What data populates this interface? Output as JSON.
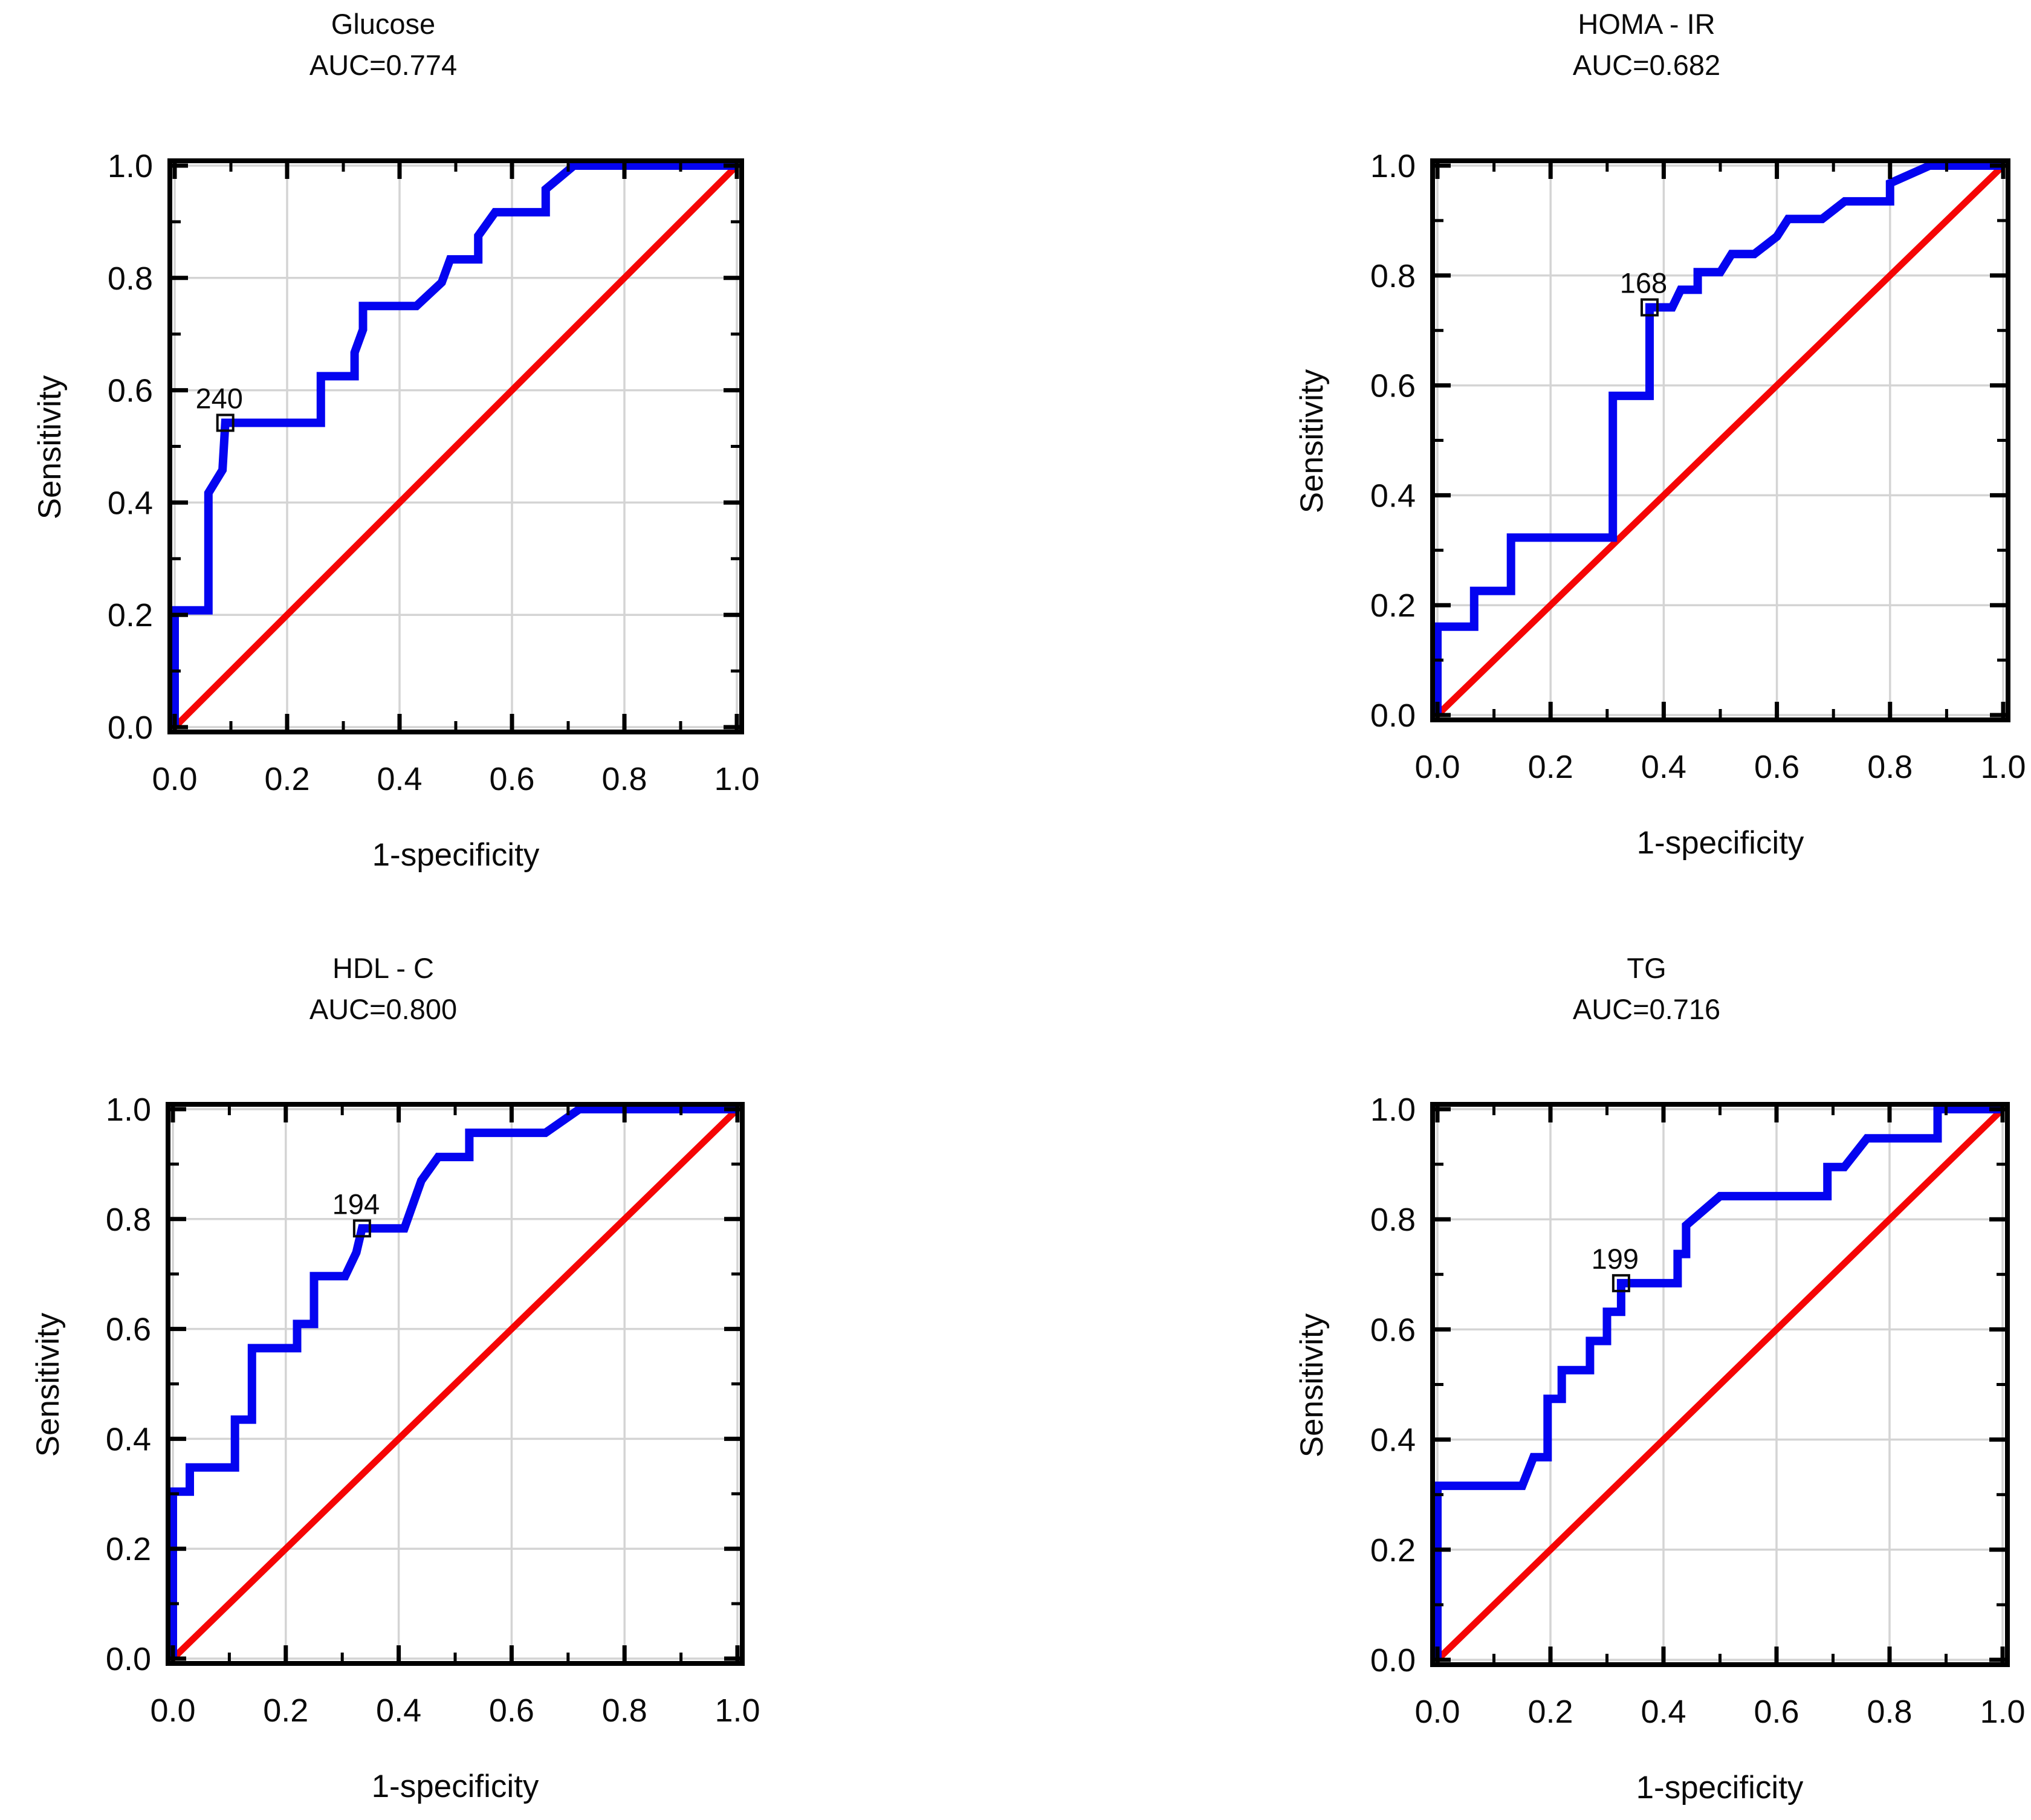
{
  "page": {
    "background": "#ffffff",
    "text_color": "#0a0a0a",
    "gridline_color": "#d4d4d4"
  },
  "chart_data": [
    {
      "type": "line",
      "title": "Glucose",
      "subtitle": "AUC=0.774",
      "auc": 0.774,
      "xlabel": "1-specificity",
      "ylabel": "Sensitivity",
      "xlim": [
        0,
        1
      ],
      "ylim": [
        0,
        1
      ],
      "grid": true,
      "legend_position": "none",
      "xticks": [
        "0.0",
        "0.2",
        "0.4",
        "0.6",
        "0.8",
        "1.0"
      ],
      "yticks": [
        "0.0",
        "0.2",
        "0.4",
        "0.6",
        "0.8",
        "1.0"
      ],
      "series": [
        {
          "name": "ROC curve",
          "color": "#0404f0",
          "points": [
            [
              0,
              0
            ],
            [
              0,
              0.208
            ],
            [
              0.06,
              0.208
            ],
            [
              0.06,
              0.417
            ],
            [
              0.085,
              0.458
            ],
            [
              0.09,
              0.542
            ],
            [
              0.26,
              0.542
            ],
            [
              0.26,
              0.625
            ],
            [
              0.32,
              0.625
            ],
            [
              0.32,
              0.667
            ],
            [
              0.335,
              0.708
            ],
            [
              0.335,
              0.75
            ],
            [
              0.43,
              0.75
            ],
            [
              0.475,
              0.792
            ],
            [
              0.49,
              0.833
            ],
            [
              0.54,
              0.833
            ],
            [
              0.54,
              0.875
            ],
            [
              0.57,
              0.917
            ],
            [
              0.66,
              0.917
            ],
            [
              0.66,
              0.958
            ],
            [
              0.71,
              1
            ],
            [
              1,
              1
            ]
          ]
        },
        {
          "name": "chance diagonal",
          "color": "#f50505",
          "points": [
            [
              0,
              0
            ],
            [
              1,
              1
            ]
          ]
        }
      ],
      "cutoff_marker": {
        "label": "240",
        "x": 0.09,
        "y": 0.542
      }
    },
    {
      "type": "line",
      "title": "HOMA - IR",
      "subtitle": "AUC=0.682",
      "auc": 0.682,
      "xlabel": "1-specificity",
      "ylabel": "Sensitivity",
      "xlim": [
        0,
        1
      ],
      "ylim": [
        0,
        1
      ],
      "grid": true,
      "legend_position": "none",
      "xticks": [
        "0.0",
        "0.2",
        "0.4",
        "0.6",
        "0.8",
        "1.0"
      ],
      "yticks": [
        "0.0",
        "0.2",
        "0.4",
        "0.6",
        "0.8",
        "1.0"
      ],
      "series": [
        {
          "name": "ROC curve",
          "color": "#0404f0",
          "points": [
            [
              0,
              0
            ],
            [
              0,
              0.161
            ],
            [
              0.065,
              0.161
            ],
            [
              0.065,
              0.226
            ],
            [
              0.13,
              0.226
            ],
            [
              0.13,
              0.323
            ],
            [
              0.31,
              0.323
            ],
            [
              0.31,
              0.581
            ],
            [
              0.375,
              0.581
            ],
            [
              0.375,
              0.742
            ],
            [
              0.415,
              0.742
            ],
            [
              0.43,
              0.774
            ],
            [
              0.46,
              0.774
            ],
            [
              0.46,
              0.806
            ],
            [
              0.5,
              0.806
            ],
            [
              0.52,
              0.839
            ],
            [
              0.56,
              0.839
            ],
            [
              0.6,
              0.871
            ],
            [
              0.62,
              0.903
            ],
            [
              0.68,
              0.903
            ],
            [
              0.72,
              0.935
            ],
            [
              0.8,
              0.935
            ],
            [
              0.8,
              0.968
            ],
            [
              0.87,
              1
            ],
            [
              1,
              1
            ]
          ]
        },
        {
          "name": "chance diagonal",
          "color": "#f50505",
          "points": [
            [
              0,
              0
            ],
            [
              1,
              1
            ]
          ]
        }
      ],
      "cutoff_marker": {
        "label": "168",
        "x": 0.375,
        "y": 0.742
      }
    },
    {
      "type": "line",
      "title": "HDL - C",
      "subtitle": "AUC=0.800",
      "auc": 0.8,
      "xlabel": "1-specificity",
      "ylabel": "Sensitivity",
      "xlim": [
        0,
        1
      ],
      "ylim": [
        0,
        1
      ],
      "grid": true,
      "legend_position": "none",
      "xticks": [
        "0.0",
        "0.2",
        "0.4",
        "0.6",
        "0.8",
        "1.0"
      ],
      "yticks": [
        "0.0",
        "0.2",
        "0.4",
        "0.6",
        "0.8",
        "1.0"
      ],
      "series": [
        {
          "name": "ROC curve",
          "color": "#0404f0",
          "points": [
            [
              0,
              0
            ],
            [
              0,
              0.304
            ],
            [
              0.03,
              0.304
            ],
            [
              0.03,
              0.348
            ],
            [
              0.11,
              0.348
            ],
            [
              0.11,
              0.435
            ],
            [
              0.14,
              0.435
            ],
            [
              0.14,
              0.565
            ],
            [
              0.22,
              0.565
            ],
            [
              0.22,
              0.609
            ],
            [
              0.25,
              0.609
            ],
            [
              0.25,
              0.696
            ],
            [
              0.305,
              0.696
            ],
            [
              0.325,
              0.739
            ],
            [
              0.335,
              0.783
            ],
            [
              0.41,
              0.783
            ],
            [
              0.44,
              0.87
            ],
            [
              0.47,
              0.913
            ],
            [
              0.525,
              0.913
            ],
            [
              0.525,
              0.957
            ],
            [
              0.66,
              0.957
            ],
            [
              0.72,
              1
            ],
            [
              1,
              1
            ]
          ]
        },
        {
          "name": "chance diagonal",
          "color": "#f50505",
          "points": [
            [
              0,
              0
            ],
            [
              1,
              1
            ]
          ]
        }
      ],
      "cutoff_marker": {
        "label": "194",
        "x": 0.335,
        "y": 0.783
      }
    },
    {
      "type": "line",
      "title": "TG",
      "subtitle": "AUC=0.716",
      "auc": 0.716,
      "xlabel": "1-specificity",
      "ylabel": "Sensitivity",
      "xlim": [
        0,
        1
      ],
      "ylim": [
        0,
        1
      ],
      "grid": true,
      "legend_position": "none",
      "xticks": [
        "0.0",
        "0.2",
        "0.4",
        "0.6",
        "0.8",
        "1.0"
      ],
      "yticks": [
        "0.0",
        "0.2",
        "0.4",
        "0.6",
        "0.8",
        "1.0"
      ],
      "series": [
        {
          "name": "ROC curve",
          "color": "#0404f0",
          "points": [
            [
              0,
              0
            ],
            [
              0,
              0.316
            ],
            [
              0.15,
              0.316
            ],
            [
              0.17,
              0.368
            ],
            [
              0.195,
              0.368
            ],
            [
              0.195,
              0.474
            ],
            [
              0.22,
              0.474
            ],
            [
              0.22,
              0.526
            ],
            [
              0.27,
              0.526
            ],
            [
              0.27,
              0.579
            ],
            [
              0.3,
              0.579
            ],
            [
              0.3,
              0.632
            ],
            [
              0.325,
              0.632
            ],
            [
              0.325,
              0.684
            ],
            [
              0.425,
              0.684
            ],
            [
              0.425,
              0.737
            ],
            [
              0.44,
              0.737
            ],
            [
              0.44,
              0.789
            ],
            [
              0.5,
              0.842
            ],
            [
              0.69,
              0.842
            ],
            [
              0.69,
              0.895
            ],
            [
              0.72,
              0.895
            ],
            [
              0.76,
              0.947
            ],
            [
              0.885,
              0.947
            ],
            [
              0.885,
              1
            ],
            [
              1,
              1
            ]
          ]
        },
        {
          "name": "chance diagonal",
          "color": "#f50505",
          "points": [
            [
              0,
              0
            ],
            [
              1,
              1
            ]
          ]
        }
      ],
      "cutoff_marker": {
        "label": "199",
        "x": 0.325,
        "y": 0.684
      }
    }
  ]
}
